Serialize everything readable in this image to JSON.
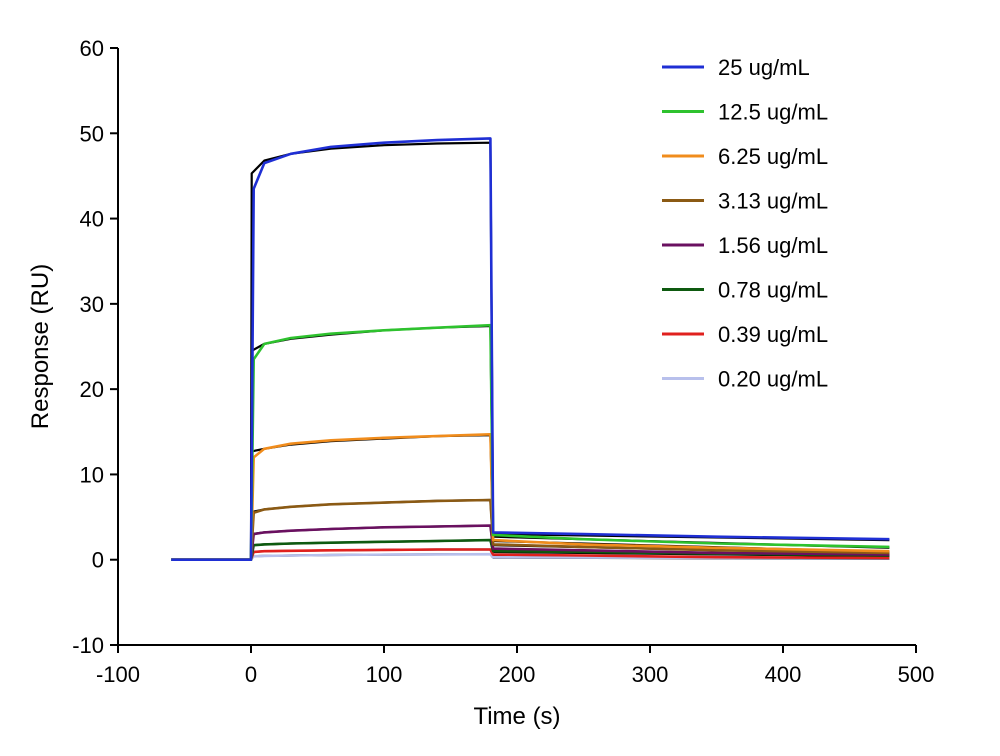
{
  "chart_data": {
    "type": "line",
    "xlabel": "Time (s)",
    "ylabel": "Response (RU)",
    "xlim": [
      -100,
      500
    ],
    "ylim": [
      -10,
      60
    ],
    "x_ticks": [
      -100,
      0,
      100,
      200,
      300,
      400,
      500
    ],
    "y_ticks": [
      -10,
      0,
      10,
      20,
      30,
      40,
      50,
      60
    ],
    "grid": false,
    "legend_position": "top-right",
    "fit_color": "#000000",
    "series": [
      {
        "name": "25 ug/mL",
        "color": "#1f2fd4",
        "x": [
          -60,
          0,
          2,
          10,
          30,
          60,
          100,
          140,
          180,
          182,
          250,
          350,
          480
        ],
        "y": [
          0,
          0,
          43.5,
          46.5,
          47.6,
          48.4,
          48.9,
          49.2,
          49.4,
          3.2,
          3.0,
          2.7,
          2.4
        ]
      },
      {
        "name": "12.5 ug/mL",
        "color": "#2ec22e",
        "x": [
          -60,
          0,
          2,
          10,
          30,
          60,
          100,
          140,
          180,
          182,
          250,
          350,
          480
        ],
        "y": [
          0,
          0,
          23.5,
          25.3,
          26.0,
          26.5,
          26.9,
          27.2,
          27.5,
          2.9,
          2.4,
          1.9,
          1.5
        ]
      },
      {
        "name": "6.25 ug/mL",
        "color": "#f08c1c",
        "x": [
          -60,
          0,
          2,
          10,
          30,
          60,
          100,
          140,
          180,
          182,
          250,
          350,
          480
        ],
        "y": [
          0,
          0,
          12.0,
          13.0,
          13.6,
          14.0,
          14.3,
          14.5,
          14.7,
          2.3,
          1.8,
          1.4,
          1.0
        ]
      },
      {
        "name": "3.13 ug/mL",
        "color": "#8b5a14",
        "x": [
          -60,
          0,
          2,
          10,
          30,
          60,
          100,
          140,
          180,
          182,
          250,
          350,
          480
        ],
        "y": [
          0,
          0,
          5.5,
          5.9,
          6.2,
          6.5,
          6.7,
          6.9,
          7.0,
          1.8,
          1.5,
          1.1,
          0.8
        ]
      },
      {
        "name": "1.56 ug/mL",
        "color": "#6a1060",
        "x": [
          -60,
          0,
          2,
          10,
          30,
          60,
          100,
          140,
          180,
          182,
          250,
          350,
          480
        ],
        "y": [
          0,
          0,
          3.0,
          3.2,
          3.4,
          3.6,
          3.8,
          3.9,
          4.0,
          1.3,
          1.1,
          0.8,
          0.6
        ]
      },
      {
        "name": "0.78 ug/mL",
        "color": "#0e5a10",
        "x": [
          -60,
          0,
          2,
          10,
          30,
          60,
          100,
          140,
          180,
          182,
          250,
          350,
          480
        ],
        "y": [
          0,
          0,
          1.7,
          1.8,
          1.9,
          2.0,
          2.1,
          2.2,
          2.3,
          1.0,
          0.9,
          0.7,
          0.5
        ]
      },
      {
        "name": "0.39 ug/mL",
        "color": "#e0201e",
        "x": [
          -60,
          0,
          2,
          10,
          30,
          60,
          100,
          140,
          180,
          182,
          250,
          350,
          480
        ],
        "y": [
          0,
          0,
          0.9,
          1.0,
          1.05,
          1.1,
          1.15,
          1.2,
          1.2,
          0.6,
          0.5,
          0.3,
          0.2
        ]
      },
      {
        "name": "0.20 ug/mL",
        "color": "#b8c0ec",
        "x": [
          -60,
          0,
          2,
          10,
          30,
          60,
          100,
          140,
          180,
          182,
          250,
          350,
          480
        ],
        "y": [
          0,
          0,
          0.4,
          0.45,
          0.5,
          0.55,
          0.6,
          0.62,
          0.65,
          0.3,
          0.25,
          0.2,
          0.15
        ]
      }
    ],
    "fits": [
      {
        "x": [
          -60,
          0,
          0.5,
          10,
          30,
          60,
          100,
          140,
          180,
          182,
          480
        ],
        "y": [
          0,
          0,
          45.3,
          46.8,
          47.6,
          48.2,
          48.6,
          48.8,
          48.9,
          3.0,
          2.3
        ]
      },
      {
        "x": [
          -60,
          0,
          0.5,
          10,
          30,
          60,
          100,
          140,
          180,
          182,
          480
        ],
        "y": [
          0,
          0,
          24.5,
          25.3,
          25.9,
          26.4,
          26.9,
          27.2,
          27.4,
          2.7,
          1.4
        ]
      },
      {
        "x": [
          -60,
          0,
          0.5,
          10,
          30,
          60,
          100,
          140,
          180,
          182,
          480
        ],
        "y": [
          0,
          0,
          12.7,
          13.0,
          13.5,
          13.9,
          14.2,
          14.5,
          14.6,
          2.2,
          0.9
        ]
      },
      {
        "x": [
          -60,
          0,
          0.5,
          10,
          30,
          60,
          100,
          140,
          180,
          182,
          480
        ],
        "y": [
          0,
          0,
          5.6,
          5.9,
          6.2,
          6.5,
          6.7,
          6.9,
          7.0,
          1.7,
          0.7
        ]
      },
      {
        "x": [
          -60,
          0,
          0.5,
          10,
          30,
          60,
          100,
          140,
          180,
          182,
          480
        ],
        "y": [
          0,
          0,
          3.0,
          3.2,
          3.4,
          3.6,
          3.8,
          3.9,
          4.0,
          1.2,
          0.5
        ]
      },
      {
        "x": [
          -60,
          0,
          0.5,
          10,
          30,
          60,
          100,
          140,
          180,
          182,
          480
        ],
        "y": [
          0,
          0,
          1.7,
          1.8,
          1.9,
          2.0,
          2.1,
          2.2,
          2.3,
          0.9,
          0.4
        ]
      },
      {
        "x": [
          -60,
          0,
          0.5,
          10,
          30,
          60,
          100,
          140,
          180,
          182,
          480
        ],
        "y": [
          0,
          0,
          0.9,
          1.0,
          1.05,
          1.1,
          1.15,
          1.2,
          1.2,
          0.5,
          0.15
        ]
      },
      {
        "x": [
          -60,
          0,
          0.5,
          10,
          30,
          60,
          100,
          140,
          180,
          182,
          480
        ],
        "y": [
          0,
          0,
          0.4,
          0.45,
          0.5,
          0.55,
          0.6,
          0.62,
          0.65,
          0.25,
          0.1
        ]
      }
    ]
  }
}
